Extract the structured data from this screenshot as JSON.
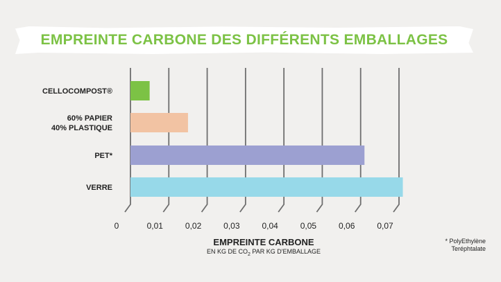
{
  "chart_data": {
    "type": "bar",
    "orientation": "horizontal",
    "title": "EMPREINTE CARBONE DES DIFFÉRENTS EMBALLAGES",
    "categories": [
      [
        "CELLOCOMPOST®"
      ],
      [
        "60% PAPIER",
        "40% PLASTIQUE"
      ],
      [
        "PET*"
      ],
      [
        "VERRE"
      ]
    ],
    "values": [
      0.005,
      0.015,
      0.061,
      0.071
    ],
    "colors": [
      "#7cc245",
      "#f2c3a3",
      "#9ca0d1",
      "#97d9e9"
    ],
    "xlim": [
      0,
      0.07
    ],
    "xticks": [
      0,
      0.01,
      0.02,
      0.03,
      0.04,
      0.05,
      0.06,
      0.07
    ],
    "xtick_labels": [
      "0",
      "0,01",
      "0,02",
      "0,03",
      "0,04",
      "0,05",
      "0,06",
      "0,07"
    ],
    "xlabel": "EMPREINTE CARBONE",
    "xlabel_sub_prefix": "EN KG DE CO",
    "xlabel_sub_subscript": "2",
    "xlabel_sub_suffix": " PAR KG D'EMBALLAGE",
    "grid": true,
    "title_color": "#7cc245"
  },
  "footnote": [
    "* PolyEthylène",
    "Teréphtalate"
  ]
}
